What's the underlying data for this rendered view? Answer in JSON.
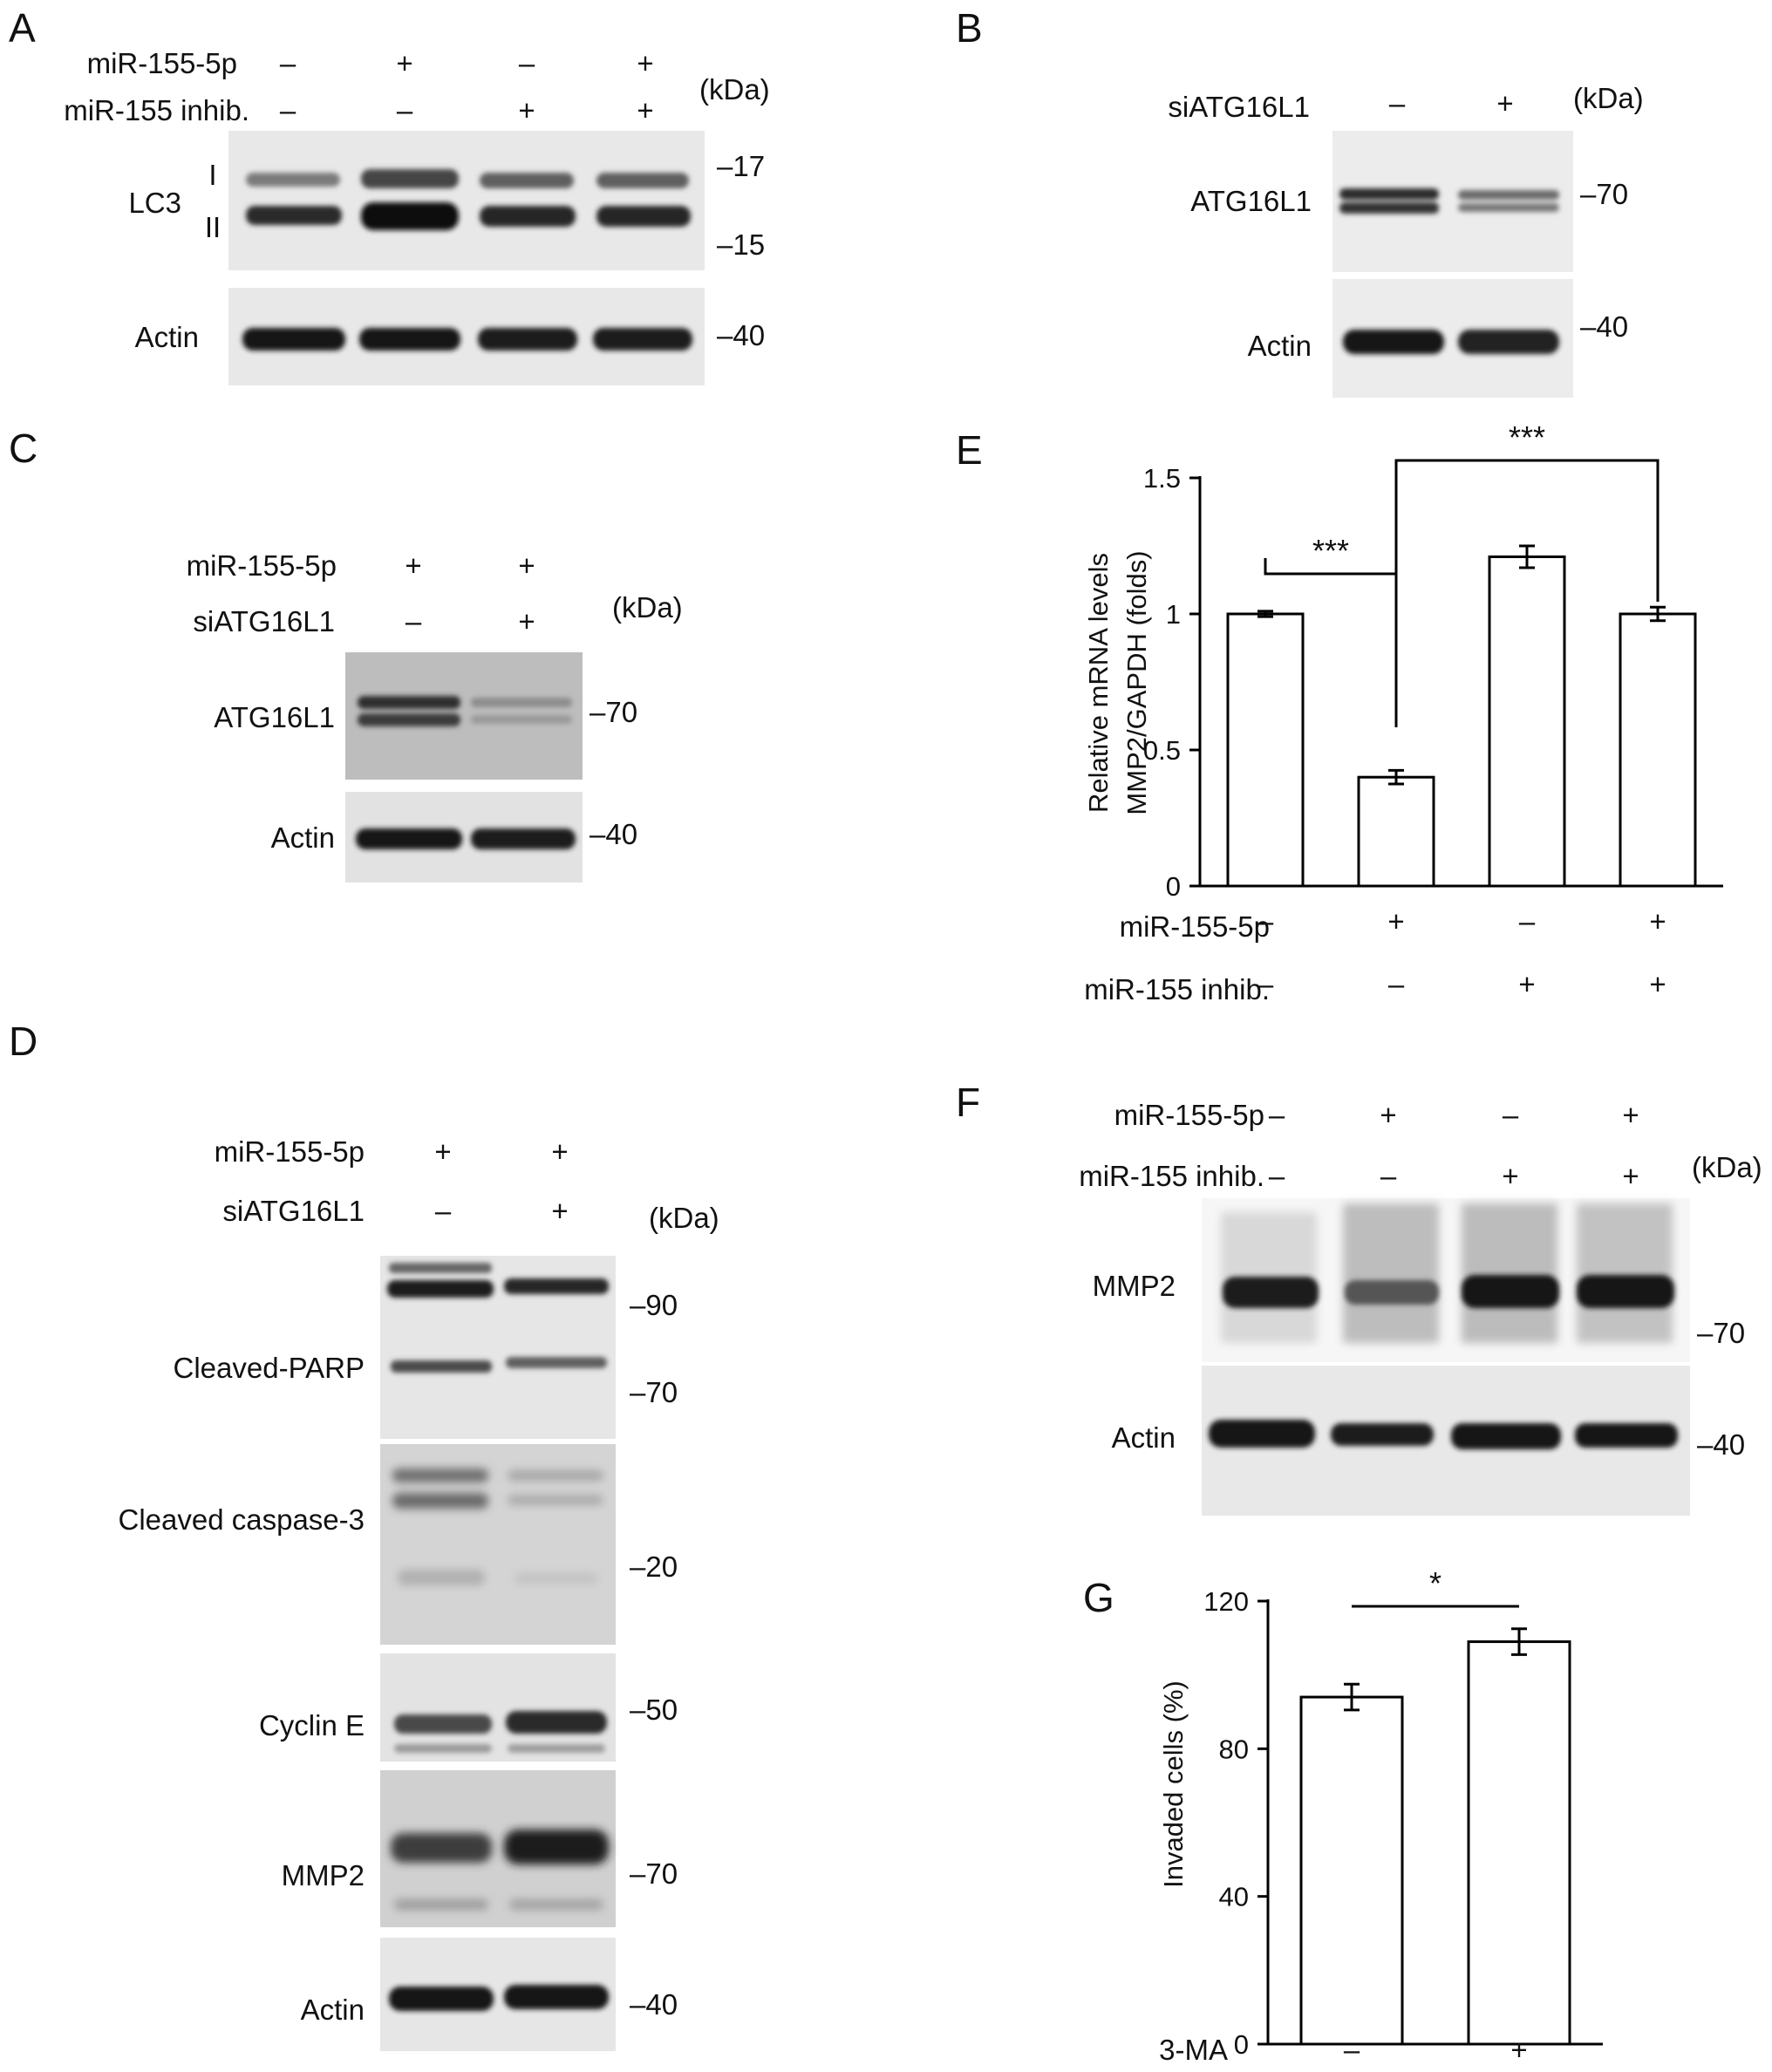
{
  "figure": {
    "panels": [
      {
        "label": "A",
        "conditions": [
          {
            "name": "miR-155-5p",
            "signs": [
              "–",
              "+",
              "–",
              "+"
            ]
          },
          {
            "name": "miR-155 inhib.",
            "signs": [
              "–",
              "–",
              "+",
              "+"
            ]
          }
        ],
        "unit": "(kDa)",
        "blots": [
          {
            "protein": "LC3",
            "bands": [
              "I",
              "II"
            ],
            "markers": [
              "17",
              "15"
            ]
          },
          {
            "protein": "Actin",
            "markers": [
              "40"
            ]
          }
        ]
      },
      {
        "label": "B",
        "conditions": [
          {
            "name": "siATG16L1",
            "signs": [
              "–",
              "+"
            ]
          }
        ],
        "unit": "(kDa)",
        "blots": [
          {
            "protein": "ATG16L1",
            "markers": [
              "70"
            ]
          },
          {
            "protein": "Actin",
            "markers": [
              "40"
            ]
          }
        ]
      },
      {
        "label": "C",
        "conditions": [
          {
            "name": "miR-155-5p",
            "signs": [
              "+",
              "+"
            ]
          },
          {
            "name": "siATG16L1",
            "signs": [
              "–",
              "+"
            ]
          }
        ],
        "unit": "(kDa)",
        "blots": [
          {
            "protein": "ATG16L1",
            "markers": [
              "70"
            ]
          },
          {
            "protein": "Actin",
            "markers": [
              "40"
            ]
          }
        ]
      },
      {
        "label": "D",
        "conditions": [
          {
            "name": "miR-155-5p",
            "signs": [
              "+",
              "+"
            ]
          },
          {
            "name": "siATG16L1",
            "signs": [
              "–",
              "+"
            ]
          }
        ],
        "unit": "(kDa)",
        "blots": [
          {
            "protein": "Cleaved-PARP",
            "markers": [
              "90",
              "70"
            ]
          },
          {
            "protein": "Cleaved caspase-3",
            "markers": [
              "20"
            ]
          },
          {
            "protein": "Cyclin E",
            "markers": [
              "50"
            ]
          },
          {
            "protein": "MMP2",
            "markers": [
              "70"
            ]
          },
          {
            "protein": "Actin",
            "markers": [
              "40"
            ]
          }
        ]
      },
      {
        "label": "F",
        "conditions": [
          {
            "name": "miR-155-5p",
            "signs": [
              "–",
              "+",
              "–",
              "+"
            ]
          },
          {
            "name": "miR-155 inhib.",
            "signs": [
              "–",
              "–",
              "+",
              "+"
            ]
          }
        ],
        "unit": "(kDa)",
        "blots": [
          {
            "protein": "MMP2",
            "markers": [
              "70"
            ]
          },
          {
            "protein": "Actin",
            "markers": [
              "40"
            ]
          }
        ]
      }
    ]
  },
  "chart_data": [
    {
      "panel": "E",
      "type": "bar",
      "ylabel_lines": [
        "Relative mRNA levels",
        "MMP2/GAPDH (folds)"
      ],
      "ylim": [
        0,
        1.5
      ],
      "yticks": [
        "0",
        "0.5",
        "1",
        "1.5"
      ],
      "values": [
        1.0,
        0.4,
        1.21,
        1.0
      ],
      "errors": [
        0.01,
        0.025,
        0.04,
        0.025
      ],
      "conditions": [
        {
          "name": "miR-155-5p",
          "signs": [
            "–",
            "+",
            "–",
            "+"
          ]
        },
        {
          "name": "miR-155 inhib.",
          "signs": [
            "–",
            "–",
            "+",
            "+"
          ]
        }
      ],
      "significance": [
        {
          "between": [
            0,
            1
          ],
          "label": "***"
        },
        {
          "between": [
            1,
            3
          ],
          "label": "***"
        }
      ]
    },
    {
      "panel": "G",
      "type": "bar",
      "ylabel": "Invaded cells (%)",
      "ylim": [
        0,
        120
      ],
      "yticks": [
        "0",
        "40",
        "80",
        "120"
      ],
      "values": [
        94,
        109
      ],
      "errors": [
        3.5,
        3.5
      ],
      "conditions": [
        {
          "name": "3-MA",
          "signs": [
            "–",
            "+"
          ]
        }
      ],
      "significance": [
        {
          "between": [
            0,
            1
          ],
          "label": "*"
        }
      ]
    }
  ]
}
